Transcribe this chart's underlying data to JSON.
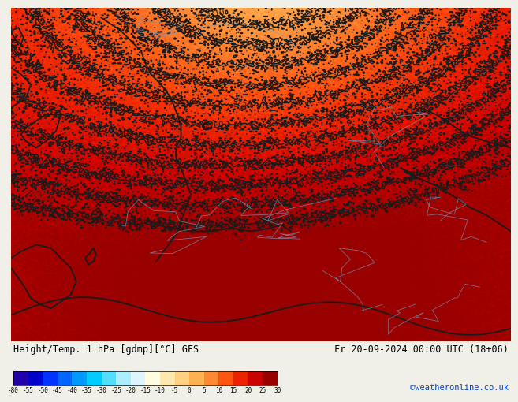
{
  "title_left": "Height/Temp. 1 hPa [gdmp][°C] GFS",
  "title_right": "Fr 20-09-2024 00:00 UTC (18+06)",
  "credit": "©weatheronline.co.uk",
  "colorbar_levels": [
    -80,
    -55,
    -50,
    -45,
    -40,
    -35,
    -30,
    -25,
    -20,
    -15,
    -10,
    -5,
    0,
    5,
    10,
    15,
    20,
    25,
    30
  ],
  "colorbar_colors": [
    "#2200aa",
    "#0000cc",
    "#0033ff",
    "#0066ff",
    "#0099ff",
    "#00ccff",
    "#55ddff",
    "#aaeeff",
    "#ddf5ff",
    "#fffde0",
    "#ffe8b0",
    "#ffd080",
    "#ffb050",
    "#ff8833",
    "#ff5511",
    "#ee2200",
    "#cc0000",
    "#990000"
  ],
  "map_bg_color": "#f5c98a",
  "contour_color": "#1a1a1a",
  "coast_color_thick": "#1a1a1a",
  "coast_color_thin": "#7799bb",
  "fig_bg": "#f0f0e8",
  "colorbar_bg": "#ffffff",
  "warm_orange": "#f0a060",
  "warm_light": "#f5d5b0",
  "very_warm": "#ee8844"
}
